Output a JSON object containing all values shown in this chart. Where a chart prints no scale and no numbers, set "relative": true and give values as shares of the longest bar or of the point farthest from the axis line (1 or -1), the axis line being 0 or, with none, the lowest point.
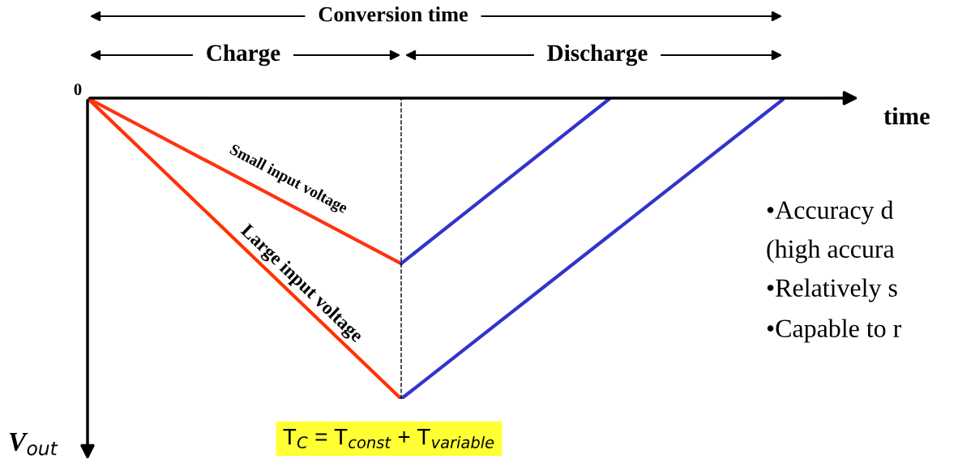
{
  "chart_data": {
    "type": "line",
    "relative": true,
    "xlabel": "time",
    "ylabel": "V$_{out}$",
    "categories": [
      null,
      null,
      null,
      null,
      null,
      null,
      null,
      null,
      null,
      null,
      null,
      null,
      null,
      null,
      null,
      null,
      null,
      null,
      null,
      null,
      null
    ],
    "series": [
      {
        "name": "Small input voltage",
        "color": "#ff3311",
        "values": [
          0,
          null,
          null,
          null,
          null,
          null,
          null,
          null,
          null,
          -0.55,
          null,
          null,
          null,
          null,
          null,
          null,
          null,
          null,
          null,
          null,
          null
        ]
      },
      {
        "name": "Large input voltage",
        "color": "#ff3300",
        "values": [
          0,
          null,
          null,
          null,
          null,
          null,
          null,
          null,
          null,
          -1,
          null,
          null,
          null,
          null,
          null,
          null,
          null,
          null,
          null,
          null,
          null
        ]
      },
      {
        "color": "#3333cc",
        "values": [
          null,
          null,
          null,
          null,
          null,
          null,
          null,
          null,
          null,
          -0.55,
          null,
          null,
          null,
          null,
          null,
          0,
          null,
          null,
          null,
          null,
          null
        ]
      },
      {
        "color": "#3333cd",
        "values": [
          null,
          null,
          null,
          null,
          null,
          null,
          null,
          null,
          null,
          -1,
          null,
          null,
          null,
          null,
          null,
          null,
          null,
          null,
          null,
          null,
          0
        ]
      }
    ],
    "annotations": [
      "Conversion time",
      "Charge",
      "Discharge",
      "0",
      "T$_{C}$ = T$_{const}$ + T$_{variable}$",
      "•Accuracy d",
      "(high accura",
      "•Relatively s",
      "•Capable to r"
    ]
  }
}
